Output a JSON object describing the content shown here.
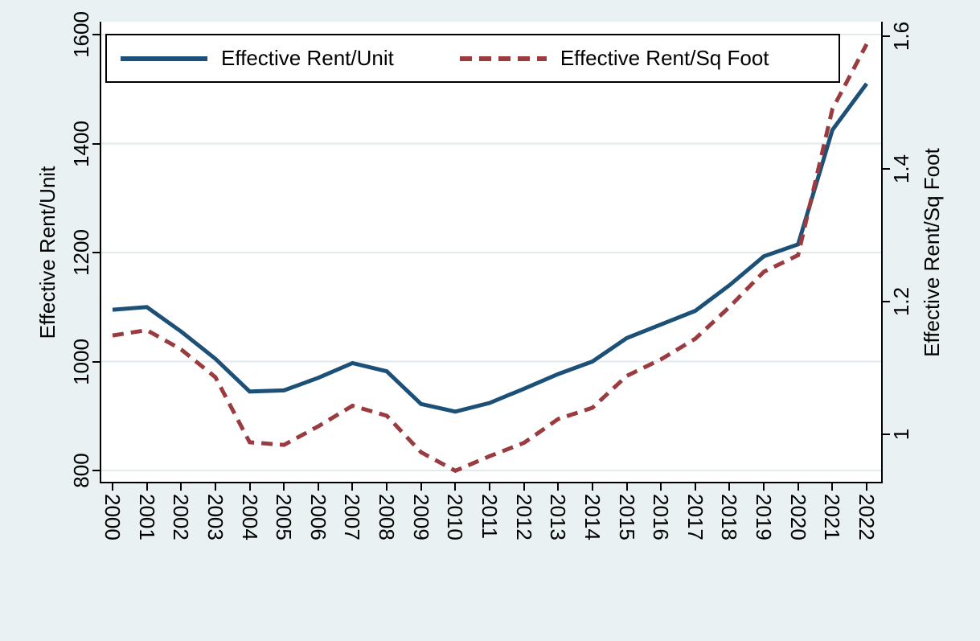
{
  "chart_data": {
    "type": "line",
    "title": "",
    "x": [
      2000,
      2001,
      2002,
      2003,
      2004,
      2005,
      2006,
      2007,
      2008,
      2009,
      2010,
      2011,
      2012,
      2013,
      2014,
      2015,
      2016,
      2017,
      2018,
      2019,
      2020,
      2021,
      2022
    ],
    "x_tick_labels": [
      "2000",
      "2001",
      "2002",
      "2003",
      "2004",
      "2005",
      "2006",
      "2007",
      "2008",
      "2009",
      "2010",
      "2011",
      "2012",
      "2013",
      "2014",
      "2015",
      "2016",
      "2017",
      "2018",
      "2019",
      "2020",
      "2021",
      "2022"
    ],
    "series": [
      {
        "name": "Effective Rent/Unit",
        "axis": "left",
        "line_style": "solid",
        "color": "#1d5077",
        "values": [
          1095,
          1100,
          1055,
          1005,
          945,
          947,
          970,
          997,
          982,
          922,
          908,
          924,
          950,
          977,
          1000,
          1043,
          1068,
          1093,
          1140,
          1193,
          1215,
          1425,
          1510
        ]
      },
      {
        "name": "Effective Rent/Sq Foot",
        "axis": "right",
        "line_style": "dashed",
        "color": "#9a3b3f",
        "values": [
          1.149,
          1.157,
          1.128,
          1.086,
          0.988,
          0.984,
          1.012,
          1.043,
          1.028,
          0.973,
          0.945,
          0.967,
          0.987,
          1.023,
          1.04,
          1.088,
          1.113,
          1.144,
          1.192,
          1.245,
          1.27,
          1.49,
          1.588
        ]
      }
    ],
    "left_axis": {
      "label": "Effective Rent/Unit",
      "ticks": [
        800,
        1000,
        1200,
        1400,
        1600
      ],
      "tick_labels": [
        "800",
        "1000",
        "1200",
        "1400",
        "1600"
      ]
    },
    "right_axis": {
      "label": "Effective Rent/Sq Foot",
      "ticks": [
        1,
        1.2,
        1.4,
        1.6
      ],
      "tick_labels": [
        "1",
        "1.2",
        "1.4",
        "1.6"
      ]
    },
    "legend": {
      "position": "top",
      "items": [
        "Effective Rent/Unit",
        "Effective Rent/Sq Foot"
      ]
    },
    "grid": {
      "horizontal": true,
      "vertical": false
    }
  },
  "colors": {
    "background": "#eaf1f2",
    "plot_background": "#ffffff",
    "gridline": "#e2eaec",
    "axis": "#000000",
    "rent_unit_line": "#1d5077",
    "rent_sqft_line": "#9a3b3f"
  }
}
